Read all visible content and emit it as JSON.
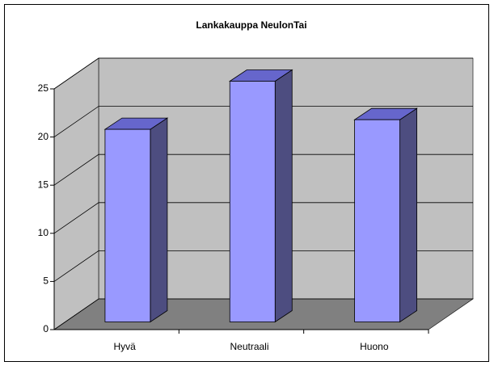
{
  "chart_data": {
    "type": "bar3d",
    "title": "Lankakauppa NeulonTai",
    "categories": [
      "Hyvä",
      "Neutraali",
      "Huono"
    ],
    "values": [
      20,
      25,
      21
    ],
    "color": "#9999ff",
    "ylim": [
      0,
      25
    ],
    "yticks": [
      0,
      5,
      10,
      15,
      20,
      25
    ],
    "grid": true
  }
}
